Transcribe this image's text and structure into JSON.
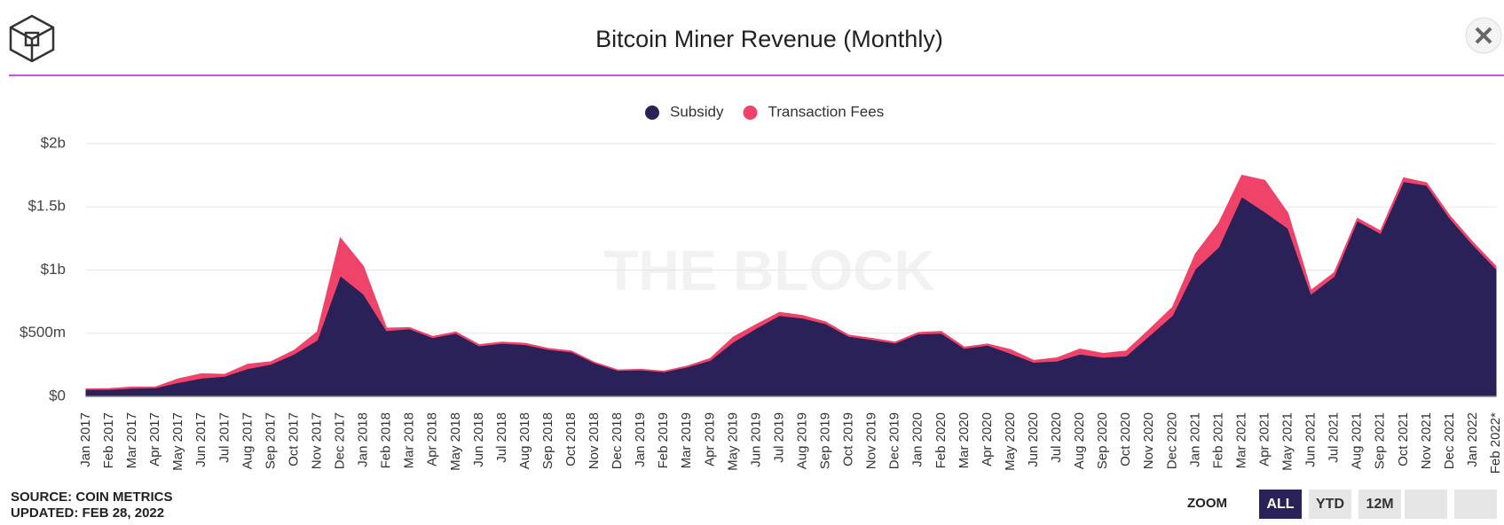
{
  "chart_data": {
    "type": "area",
    "stacked": true,
    "title": "Bitcoin Miner Revenue (Monthly)",
    "watermark": "THE BLOCK",
    "categories": [
      "Jan 2017",
      "Feb 2017",
      "Mar 2017",
      "Apr 2017",
      "May 2017",
      "Jun 2017",
      "Jul 2017",
      "Aug 2017",
      "Sep 2017",
      "Oct 2017",
      "Nov 2017",
      "Dec 2017",
      "Jan 2018",
      "Feb 2018",
      "Mar 2018",
      "Apr 2018",
      "May 2018",
      "Jun 2018",
      "Jul 2018",
      "Aug 2018",
      "Sep 2018",
      "Oct 2018",
      "Nov 2018",
      "Dec 2018",
      "Jan 2019",
      "Feb 2019",
      "Mar 2019",
      "Apr 2019",
      "May 2019",
      "Jun 2019",
      "Jul 2019",
      "Aug 2019",
      "Sep 2019",
      "Oct 2019",
      "Nov 2019",
      "Dec 2019",
      "Jan 2020",
      "Feb 2020",
      "Mar 2020",
      "Apr 2020",
      "May 2020",
      "Jun 2020",
      "Jul 2020",
      "Aug 2020",
      "Sep 2020",
      "Oct 2020",
      "Nov 2020",
      "Dec 2020",
      "Jan 2021",
      "Feb 2021",
      "Mar 2021",
      "Apr 2021",
      "May 2021",
      "Jun 2021",
      "Jul 2021",
      "Aug 2021",
      "Sep 2021",
      "Oct 2021",
      "Nov 2021",
      "Dec 2021",
      "Jan 2022",
      "Feb 2022*"
    ],
    "series": [
      {
        "name": "Subsidy",
        "color": "#2a2159",
        "values": [
          55,
          55,
          65,
          68,
          110,
          145,
          160,
          220,
          255,
          335,
          445,
          955,
          810,
          520,
          535,
          465,
          500,
          400,
          420,
          410,
          372,
          352,
          265,
          205,
          210,
          195,
          232,
          285,
          430,
          540,
          640,
          620,
          575,
          475,
          450,
          422,
          495,
          500,
          380,
          405,
          340,
          270,
          280,
          335,
          310,
          320,
          480,
          640,
          1010,
          1180,
          1580,
          1460,
          1330,
          810,
          950,
          1390,
          1290,
          1700,
          1670,
          1410,
          1200,
          1010
        ]
      },
      {
        "name": "Transaction Fees",
        "color": "#f0436a",
        "values": [
          5,
          7,
          10,
          7,
          30,
          35,
          15,
          35,
          20,
          30,
          65,
          300,
          220,
          20,
          10,
          10,
          10,
          10,
          10,
          10,
          8,
          8,
          5,
          5,
          5,
          5,
          8,
          15,
          40,
          30,
          25,
          20,
          15,
          10,
          10,
          8,
          10,
          15,
          10,
          10,
          30,
          15,
          25,
          40,
          30,
          40,
          50,
          65,
          120,
          190,
          170,
          250,
          120,
          30,
          30,
          20,
          20,
          30,
          20,
          20,
          20,
          20
        ]
      }
    ],
    "ylim": [
      0,
      2000
    ],
    "yticks": [
      {
        "value": 0,
        "label": "$0"
      },
      {
        "value": 500,
        "label": "$500m"
      },
      {
        "value": 1000,
        "label": "$1b"
      },
      {
        "value": 1500,
        "label": "$1.5b"
      },
      {
        "value": 2000,
        "label": "$2b"
      }
    ],
    "grid": true
  },
  "source": "SOURCE: COIN METRICS",
  "updated": "UPDATED: FEB 28, 2022",
  "zoom": {
    "label": "ZOOM",
    "buttons": [
      "ALL",
      "YTD",
      "12M"
    ]
  }
}
